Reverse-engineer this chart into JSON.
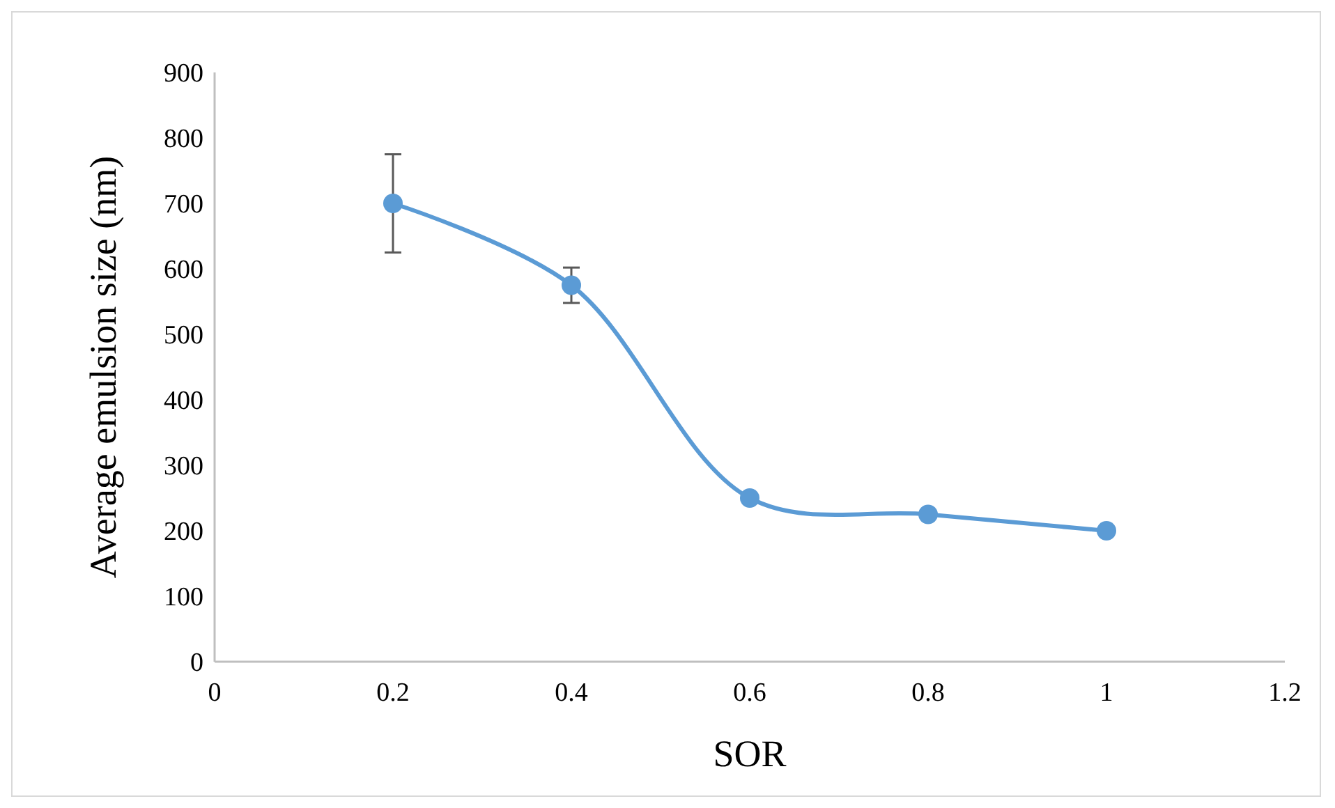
{
  "chart_data": {
    "type": "line",
    "xlabel": "SOR",
    "ylabel": "Average emulsion size (nm)",
    "x": [
      0.2,
      0.4,
      0.6,
      0.8,
      1
    ],
    "series": [
      {
        "color": "#5b9bd5",
        "values": [
          700,
          575,
          250,
          225,
          200
        ],
        "errors": [
          75,
          27,
          null,
          null,
          null
        ]
      }
    ],
    "xlim": [
      0,
      1.2
    ],
    "xticks": [
      0,
      0.2,
      0.4,
      0.6,
      0.8,
      1,
      1.2
    ],
    "ylim": [
      0,
      900
    ],
    "yticks": [
      0,
      100,
      200,
      300,
      400,
      500,
      600,
      700,
      800,
      900
    ],
    "marker": "circle",
    "line_style": "solid"
  }
}
